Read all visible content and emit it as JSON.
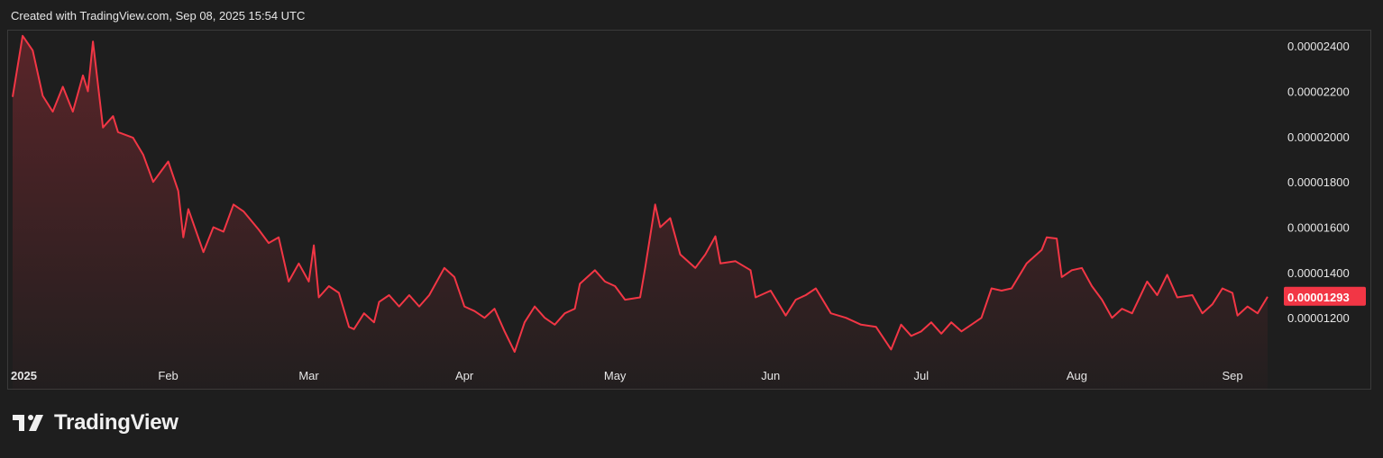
{
  "header": {
    "caption": "Created with TradingView.com, Sep 08, 2025 15:54 UTC"
  },
  "brand": {
    "name": "TradingView"
  },
  "colors": {
    "line": "#f23645",
    "background": "#1e1e1e",
    "axis_text": "#e6e6e6",
    "badge_bg": "#f23645",
    "badge_text": "#ffffff"
  },
  "chart_data": {
    "type": "area",
    "x_start": "2025-01-01",
    "x_end": "2025-09-08",
    "x_ticks": [
      {
        "date": "2025-01-01",
        "label": "2025"
      },
      {
        "date": "2025-02-01",
        "label": "Feb"
      },
      {
        "date": "2025-03-01",
        "label": "Mar"
      },
      {
        "date": "2025-04-01",
        "label": "Apr"
      },
      {
        "date": "2025-05-01",
        "label": "May"
      },
      {
        "date": "2025-06-01",
        "label": "Jun"
      },
      {
        "date": "2025-07-01",
        "label": "Jul"
      },
      {
        "date": "2025-08-01",
        "label": "Aug"
      },
      {
        "date": "2025-09-01",
        "label": "Sep"
      }
    ],
    "y_ticks": [
      "0.00002400",
      "0.00002200",
      "0.00002000",
      "0.00001800",
      "0.00001600",
      "0.00001400",
      "0.00001200"
    ],
    "y_range": [
      1.03e-05,
      2.46e-05
    ],
    "last_value_label": "0.00001293",
    "last_value": 1.293e-05,
    "points": [
      [
        "2025-01-01",
        2.175e-05
      ],
      [
        "2025-01-03",
        2.445e-05
      ],
      [
        "2025-01-05",
        2.38e-05
      ],
      [
        "2025-01-07",
        2.18e-05
      ],
      [
        "2025-01-09",
        2.11e-05
      ],
      [
        "2025-01-11",
        2.22e-05
      ],
      [
        "2025-01-13",
        2.11e-05
      ],
      [
        "2025-01-15",
        2.27e-05
      ],
      [
        "2025-01-16",
        2.2e-05
      ],
      [
        "2025-01-17",
        2.42e-05
      ],
      [
        "2025-01-19",
        2.04e-05
      ],
      [
        "2025-01-21",
        2.09e-05
      ],
      [
        "2025-01-22",
        2.02e-05
      ],
      [
        "2025-01-25",
        1.995e-05
      ],
      [
        "2025-01-27",
        1.92e-05
      ],
      [
        "2025-01-29",
        1.8e-05
      ],
      [
        "2025-02-01",
        1.89e-05
      ],
      [
        "2025-02-03",
        1.76e-05
      ],
      [
        "2025-02-04",
        1.555e-05
      ],
      [
        "2025-02-05",
        1.68e-05
      ],
      [
        "2025-02-08",
        1.49e-05
      ],
      [
        "2025-02-10",
        1.6e-05
      ],
      [
        "2025-02-12",
        1.58e-05
      ],
      [
        "2025-02-14",
        1.7e-05
      ],
      [
        "2025-02-16",
        1.67e-05
      ],
      [
        "2025-02-19",
        1.59e-05
      ],
      [
        "2025-02-21",
        1.53e-05
      ],
      [
        "2025-02-23",
        1.555e-05
      ],
      [
        "2025-02-25",
        1.36e-05
      ],
      [
        "2025-02-27",
        1.44e-05
      ],
      [
        "2025-03-01",
        1.36e-05
      ],
      [
        "2025-03-02",
        1.52e-05
      ],
      [
        "2025-03-03",
        1.29e-05
      ],
      [
        "2025-03-05",
        1.34e-05
      ],
      [
        "2025-03-07",
        1.31e-05
      ],
      [
        "2025-03-09",
        1.16e-05
      ],
      [
        "2025-03-10",
        1.15e-05
      ],
      [
        "2025-03-12",
        1.22e-05
      ],
      [
        "2025-03-14",
        1.18e-05
      ],
      [
        "2025-03-15",
        1.27e-05
      ],
      [
        "2025-03-17",
        1.3e-05
      ],
      [
        "2025-03-19",
        1.25e-05
      ],
      [
        "2025-03-21",
        1.3e-05
      ],
      [
        "2025-03-23",
        1.25e-05
      ],
      [
        "2025-03-25",
        1.3e-05
      ],
      [
        "2025-03-28",
        1.42e-05
      ],
      [
        "2025-03-30",
        1.38e-05
      ],
      [
        "2025-04-01",
        1.25e-05
      ],
      [
        "2025-04-03",
        1.23e-05
      ],
      [
        "2025-04-05",
        1.2e-05
      ],
      [
        "2025-04-07",
        1.24e-05
      ],
      [
        "2025-04-09",
        1.14e-05
      ],
      [
        "2025-04-11",
        1.05e-05
      ],
      [
        "2025-04-13",
        1.18e-05
      ],
      [
        "2025-04-15",
        1.25e-05
      ],
      [
        "2025-04-17",
        1.2e-05
      ],
      [
        "2025-04-19",
        1.17e-05
      ],
      [
        "2025-04-21",
        1.22e-05
      ],
      [
        "2025-04-23",
        1.24e-05
      ],
      [
        "2025-04-24",
        1.35e-05
      ],
      [
        "2025-04-27",
        1.41e-05
      ],
      [
        "2025-04-29",
        1.36e-05
      ],
      [
        "2025-05-01",
        1.34e-05
      ],
      [
        "2025-05-03",
        1.28e-05
      ],
      [
        "2025-05-06",
        1.29e-05
      ],
      [
        "2025-05-07",
        1.42e-05
      ],
      [
        "2025-05-09",
        1.7e-05
      ],
      [
        "2025-05-10",
        1.6e-05
      ],
      [
        "2025-05-12",
        1.64e-05
      ],
      [
        "2025-05-14",
        1.48e-05
      ],
      [
        "2025-05-17",
        1.42e-05
      ],
      [
        "2025-05-19",
        1.48e-05
      ],
      [
        "2025-05-21",
        1.56e-05
      ],
      [
        "2025-05-22",
        1.44e-05
      ],
      [
        "2025-05-25",
        1.45e-05
      ],
      [
        "2025-05-28",
        1.41e-05
      ],
      [
        "2025-05-29",
        1.29e-05
      ],
      [
        "2025-06-01",
        1.32e-05
      ],
      [
        "2025-06-04",
        1.21e-05
      ],
      [
        "2025-06-06",
        1.28e-05
      ],
      [
        "2025-06-08",
        1.3e-05
      ],
      [
        "2025-06-10",
        1.33e-05
      ],
      [
        "2025-06-13",
        1.22e-05
      ],
      [
        "2025-06-16",
        1.2e-05
      ],
      [
        "2025-06-19",
        1.17e-05
      ],
      [
        "2025-06-22",
        1.16e-05
      ],
      [
        "2025-06-25",
        1.06e-05
      ],
      [
        "2025-06-27",
        1.17e-05
      ],
      [
        "2025-06-29",
        1.12e-05
      ],
      [
        "2025-07-01",
        1.14e-05
      ],
      [
        "2025-07-03",
        1.18e-05
      ],
      [
        "2025-07-05",
        1.13e-05
      ],
      [
        "2025-07-07",
        1.18e-05
      ],
      [
        "2025-07-09",
        1.14e-05
      ],
      [
        "2025-07-11",
        1.17e-05
      ],
      [
        "2025-07-13",
        1.2e-05
      ],
      [
        "2025-07-15",
        1.33e-05
      ],
      [
        "2025-07-17",
        1.32e-05
      ],
      [
        "2025-07-19",
        1.33e-05
      ],
      [
        "2025-07-22",
        1.44e-05
      ],
      [
        "2025-07-25",
        1.5e-05
      ],
      [
        "2025-07-26",
        1.555e-05
      ],
      [
        "2025-07-28",
        1.55e-05
      ],
      [
        "2025-07-29",
        1.38e-05
      ],
      [
        "2025-07-31",
        1.41e-05
      ],
      [
        "2025-08-02",
        1.42e-05
      ],
      [
        "2025-08-04",
        1.34e-05
      ],
      [
        "2025-08-06",
        1.28e-05
      ],
      [
        "2025-08-08",
        1.2e-05
      ],
      [
        "2025-08-10",
        1.24e-05
      ],
      [
        "2025-08-12",
        1.22e-05
      ],
      [
        "2025-08-15",
        1.36e-05
      ],
      [
        "2025-08-17",
        1.3e-05
      ],
      [
        "2025-08-19",
        1.39e-05
      ],
      [
        "2025-08-21",
        1.29e-05
      ],
      [
        "2025-08-24",
        1.3e-05
      ],
      [
        "2025-08-26",
        1.22e-05
      ],
      [
        "2025-08-28",
        1.26e-05
      ],
      [
        "2025-08-30",
        1.33e-05
      ],
      [
        "2025-09-01",
        1.31e-05
      ],
      [
        "2025-09-02",
        1.21e-05
      ],
      [
        "2025-09-04",
        1.25e-05
      ],
      [
        "2025-09-06",
        1.22e-05
      ],
      [
        "2025-09-08",
        1.293e-05
      ]
    ]
  }
}
